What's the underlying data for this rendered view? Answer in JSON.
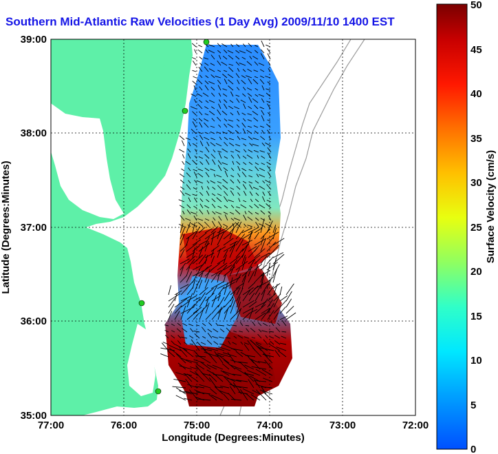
{
  "title": "Southern Mid-Atlantic Raw Velocities (1 Day Avg) 2009/11/10 1400 EST",
  "x_axis": {
    "label": "Longitude (Degrees:Minutes)",
    "ticks": [
      "77:00",
      "76:00",
      "75:00",
      "74:00",
      "73:00",
      "72:00"
    ],
    "range": [
      -77,
      -72
    ]
  },
  "y_axis": {
    "label": "Latitude (Degrees:Minutes)",
    "ticks": [
      "39:00",
      "38:00",
      "37:00",
      "36:00",
      "35:00"
    ],
    "range": [
      35,
      39
    ]
  },
  "colorbar": {
    "label": "Surface Velocity (cm/s)",
    "ticks": [
      "50",
      "45",
      "40",
      "35",
      "30",
      "25",
      "20",
      "15",
      "10",
      "5",
      "0"
    ],
    "range": [
      0,
      50
    ]
  },
  "colors": {
    "land": "#5ef0a8",
    "title": "#1414e6",
    "grid": "#000000",
    "bathymetry": "#9a9a9a",
    "station": "#22cc22"
  },
  "grid": true
}
